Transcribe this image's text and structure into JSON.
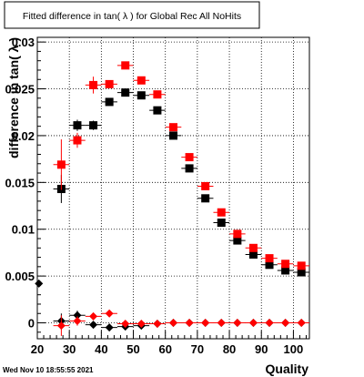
{
  "title": "Fitted difference in tan( λ ) for Global Rec All NoHits",
  "timestamp": "Wed Nov 10 18:55:55 2021",
  "chart_data": {
    "type": "scatter",
    "title": "Fitted difference in tan( λ ) for Global Rec All NoHits",
    "xlabel": "Quality",
    "ylabel": "difference in tan( λ )",
    "xlim": [
      20,
      105
    ],
    "ylim": [
      -0.0017,
      0.0305
    ],
    "x_ticks": [
      "20",
      "30",
      "40",
      "50",
      "60",
      "70",
      "80",
      "90",
      "100"
    ],
    "y_ticks": [
      "0",
      "0.005",
      "0.01",
      "0.015",
      "0.02",
      "0.025",
      "0.03"
    ],
    "grid": true,
    "colors": {
      "red": "#ff0000",
      "black": "#000000"
    },
    "series": [
      {
        "marker": "square",
        "color": "#000000",
        "points": [
          {
            "x": 27.5,
            "y": 0.0143,
            "ex": 2.5,
            "ey": 0.0015
          },
          {
            "x": 32.5,
            "y": 0.0211,
            "ex": 2.5,
            "ey": 0.0006
          },
          {
            "x": 37.5,
            "y": 0.0211,
            "ex": 2.5,
            "ey": 0.0005
          },
          {
            "x": 42.5,
            "y": 0.0236,
            "ex": 2.5,
            "ey": 0.0004
          },
          {
            "x": 47.5,
            "y": 0.0246,
            "ex": 2.5,
            "ey": 0.0003
          },
          {
            "x": 52.5,
            "y": 0.0243,
            "ex": 2.5,
            "ey": 0.0003
          },
          {
            "x": 57.5,
            "y": 0.0227,
            "ex": 2.5,
            "ey": 0.0003
          },
          {
            "x": 62.5,
            "y": 0.02,
            "ex": 2.5,
            "ey": 0.0002
          },
          {
            "x": 67.5,
            "y": 0.0165,
            "ex": 2.5,
            "ey": 0.0002
          },
          {
            "x": 72.5,
            "y": 0.0133,
            "ex": 2.5,
            "ey": 0.0002
          },
          {
            "x": 77.5,
            "y": 0.0107,
            "ex": 2.5,
            "ey": 0.0002
          },
          {
            "x": 82.5,
            "y": 0.0088,
            "ex": 2.5,
            "ey": 0.0002
          },
          {
            "x": 87.5,
            "y": 0.0073,
            "ex": 2.5,
            "ey": 0.0002
          },
          {
            "x": 92.5,
            "y": 0.0062,
            "ex": 2.5,
            "ey": 0.0002
          },
          {
            "x": 97.5,
            "y": 0.0056,
            "ex": 2.5,
            "ey": 0.0002
          },
          {
            "x": 102.5,
            "y": 0.0054,
            "ex": 2.5,
            "ey": 0.0002
          }
        ]
      },
      {
        "marker": "square",
        "color": "#ff0000",
        "points": [
          {
            "x": 27.5,
            "y": 0.0169,
            "ex": 2.5,
            "ey": 0.0027
          },
          {
            "x": 32.5,
            "y": 0.0195,
            "ex": 2.5,
            "ey": 0.0008
          },
          {
            "x": 37.5,
            "y": 0.0254,
            "ex": 2.5,
            "ey": 0.0009
          },
          {
            "x": 42.5,
            "y": 0.0255,
            "ex": 2.5,
            "ey": 0.0004
          },
          {
            "x": 47.5,
            "y": 0.0275,
            "ex": 2.5,
            "ey": 0.0003
          },
          {
            "x": 52.5,
            "y": 0.0259,
            "ex": 2.5,
            "ey": 0.0003
          },
          {
            "x": 57.5,
            "y": 0.0244,
            "ex": 2.5,
            "ey": 0.0003
          },
          {
            "x": 62.5,
            "y": 0.0209,
            "ex": 2.5,
            "ey": 0.0002
          },
          {
            "x": 67.5,
            "y": 0.0177,
            "ex": 2.5,
            "ey": 0.0002
          },
          {
            "x": 72.5,
            "y": 0.0146,
            "ex": 2.5,
            "ey": 0.0002
          },
          {
            "x": 77.5,
            "y": 0.0118,
            "ex": 2.5,
            "ey": 0.0002
          },
          {
            "x": 82.5,
            "y": 0.0095,
            "ex": 2.5,
            "ey": 0.0002
          },
          {
            "x": 87.5,
            "y": 0.008,
            "ex": 2.5,
            "ey": 0.0002
          },
          {
            "x": 92.5,
            "y": 0.0069,
            "ex": 2.5,
            "ey": 0.0002
          },
          {
            "x": 97.5,
            "y": 0.0063,
            "ex": 2.5,
            "ey": 0.0002
          },
          {
            "x": 102.5,
            "y": 0.0061,
            "ex": 2.5,
            "ey": 0.0002
          }
        ]
      },
      {
        "marker": "diamond",
        "color": "#000000",
        "points": [
          {
            "x": 20.5,
            "y": 0.0042,
            "ex": 1.0,
            "ey": 0.0002
          },
          {
            "x": 27.5,
            "y": 0.0002,
            "ex": 2.5,
            "ey": 0.0008
          },
          {
            "x": 32.5,
            "y": 0.0008,
            "ex": 2.5,
            "ey": 0.0005
          },
          {
            "x": 37.5,
            "y": -0.0002,
            "ex": 2.5,
            "ey": 0.0002
          },
          {
            "x": 42.5,
            "y": -0.0005,
            "ex": 2.5,
            "ey": 0.0002
          },
          {
            "x": 47.5,
            "y": -0.0004,
            "ex": 2.5,
            "ey": 0.0002
          },
          {
            "x": 52.5,
            "y": -0.0003,
            "ex": 2.5,
            "ey": 0.0002
          },
          {
            "x": 57.5,
            "y": -0.0001,
            "ex": 2.5,
            "ey": 0.0001
          },
          {
            "x": 62.5,
            "y": 0.0,
            "ex": 2.5,
            "ey": 0.0001
          },
          {
            "x": 67.5,
            "y": 0.0,
            "ex": 2.5,
            "ey": 0.0001
          },
          {
            "x": 72.5,
            "y": 0.0,
            "ex": 2.5,
            "ey": 0.0001
          },
          {
            "x": 77.5,
            "y": 0.0,
            "ex": 2.5,
            "ey": 0.0001
          },
          {
            "x": 82.5,
            "y": 0.0,
            "ex": 2.5,
            "ey": 0.0001
          },
          {
            "x": 87.5,
            "y": 0.0,
            "ex": 2.5,
            "ey": 0.0001
          },
          {
            "x": 92.5,
            "y": 0.0,
            "ex": 2.5,
            "ey": 0.0001
          },
          {
            "x": 97.5,
            "y": 0.0,
            "ex": 2.5,
            "ey": 0.0001
          },
          {
            "x": 102.5,
            "y": 0.0,
            "ex": 2.5,
            "ey": 0.0001
          }
        ]
      },
      {
        "marker": "diamond",
        "color": "#ff0000",
        "points": [
          {
            "x": 27.5,
            "y": -0.0003,
            "ex": 2.5,
            "ey": 0.0011
          },
          {
            "x": 32.5,
            "y": 0.0002,
            "ex": 2.5,
            "ey": 0.0005
          },
          {
            "x": 37.5,
            "y": 0.0007,
            "ex": 2.5,
            "ey": 0.0003
          },
          {
            "x": 42.5,
            "y": 0.001,
            "ex": 2.5,
            "ey": 0.0002
          },
          {
            "x": 47.5,
            "y": -0.0001,
            "ex": 2.5,
            "ey": 0.0002
          },
          {
            "x": 52.5,
            "y": -0.0001,
            "ex": 2.5,
            "ey": 0.0002
          },
          {
            "x": 57.5,
            "y": -0.0001,
            "ex": 2.5,
            "ey": 0.0001
          },
          {
            "x": 62.5,
            "y": 0.0,
            "ex": 2.5,
            "ey": 0.0001
          },
          {
            "x": 67.5,
            "y": 0.0,
            "ex": 2.5,
            "ey": 0.0001
          },
          {
            "x": 72.5,
            "y": 0.0,
            "ex": 2.5,
            "ey": 0.0001
          },
          {
            "x": 77.5,
            "y": 0.0,
            "ex": 2.5,
            "ey": 0.0001
          },
          {
            "x": 82.5,
            "y": 0.0,
            "ex": 2.5,
            "ey": 0.0001
          },
          {
            "x": 87.5,
            "y": 0.0,
            "ex": 2.5,
            "ey": 0.0001
          },
          {
            "x": 92.5,
            "y": 0.0,
            "ex": 2.5,
            "ey": 0.0001
          },
          {
            "x": 97.5,
            "y": 0.0,
            "ex": 2.5,
            "ey": 0.0001
          },
          {
            "x": 102.5,
            "y": 0.0,
            "ex": 2.5,
            "ey": 0.0001
          }
        ]
      }
    ]
  }
}
